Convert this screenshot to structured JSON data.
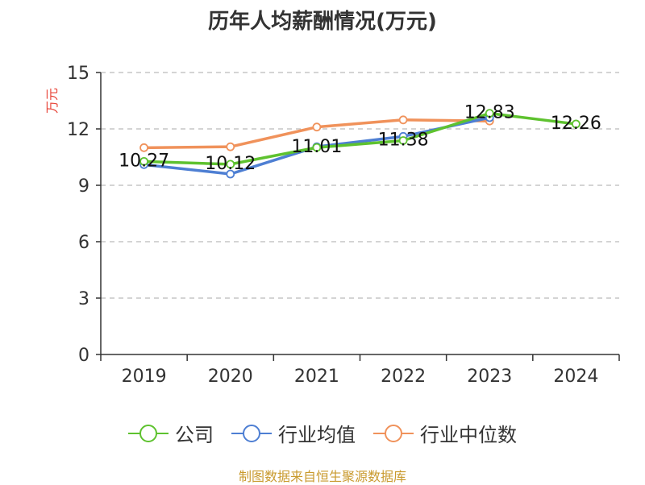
{
  "chart_data": {
    "type": "line",
    "title": "历年人均薪酬情况(万元)",
    "ylabel": "万元",
    "categories": [
      "2019",
      "2020",
      "2021",
      "2022",
      "2023",
      "2024"
    ],
    "ylim": [
      0,
      15
    ],
    "yticks": [
      0,
      3,
      6,
      9,
      12,
      15
    ],
    "grid": true,
    "legend_position": "bottom",
    "series": [
      {
        "name": "公司",
        "color": "#5ec22f",
        "values": [
          10.27,
          10.12,
          11.01,
          11.38,
          12.83,
          12.26
        ],
        "data_labels": [
          "10.27",
          "10.12",
          "11.01",
          "11.38",
          "12.83",
          "12.26"
        ]
      },
      {
        "name": "行业均值",
        "color": "#4e7fd3",
        "values": [
          10.1,
          9.6,
          11.05,
          11.6,
          12.6,
          null
        ]
      },
      {
        "name": "行业中位数",
        "color": "#f0925b",
        "values": [
          11.0,
          11.05,
          12.1,
          12.48,
          12.42,
          null
        ]
      }
    ]
  },
  "source": "制图数据来自恒生聚源数据库"
}
